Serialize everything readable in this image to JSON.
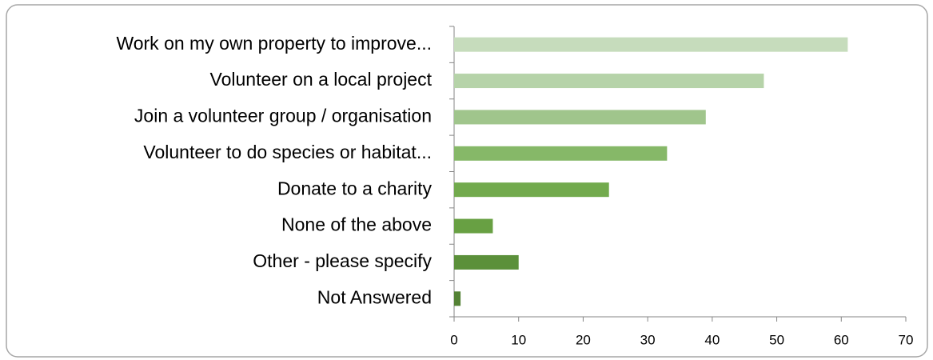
{
  "chart_data": {
    "type": "bar",
    "orientation": "horizontal",
    "categories": [
      "Work on my own property to improve...",
      "Volunteer on a local project",
      "Join a volunteer group / organisation",
      "Volunteer to do species or habitat...",
      "Donate to a charity",
      "None of the above",
      "Other - please specify",
      "Not Answered"
    ],
    "values": [
      61,
      48,
      39,
      33,
      24,
      6,
      10,
      1
    ],
    "colors": [
      "#c6dcbc",
      "#b6d3a9",
      "#a0c58c",
      "#86b868",
      "#72aa4d",
      "#68a043",
      "#5b903a",
      "#548235"
    ],
    "xlim": [
      0,
      70
    ],
    "xticks": [
      0,
      10,
      20,
      30,
      40,
      50,
      60,
      70
    ],
    "grid": false
  }
}
